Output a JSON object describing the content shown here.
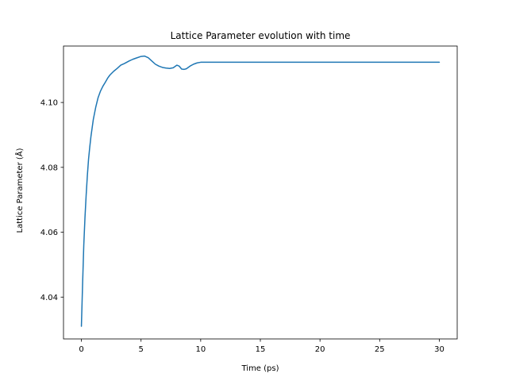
{
  "chart_data": {
    "type": "line",
    "title": "Lattice Parameter evolution with time",
    "xlabel": "Time (ps)",
    "ylabel": "Lattice Parameter (Å)",
    "xlim": [
      -1.5,
      31.5
    ],
    "ylim": [
      4.0271,
      4.1174
    ],
    "xticks": [
      0,
      5,
      10,
      15,
      20,
      25,
      30
    ],
    "xtick_labels": [
      "0",
      "5",
      "10",
      "15",
      "20",
      "25",
      "30"
    ],
    "yticks": [
      4.04,
      4.06,
      4.08,
      4.1
    ],
    "ytick_labels": [
      "4.04",
      "4.06",
      "4.08",
      "4.10"
    ],
    "grid": false,
    "legend": "none",
    "series": [
      {
        "color": "#1f77b4",
        "x": [
          0,
          0.1,
          0.2,
          0.3,
          0.4,
          0.5,
          0.6,
          0.7,
          0.8,
          1.0,
          1.2,
          1.4,
          1.6,
          1.8,
          2.0,
          2.2,
          2.4,
          2.7,
          3.0,
          3.3,
          3.6,
          4.0,
          4.3,
          4.6,
          5.0,
          5.3,
          5.6,
          5.9,
          6.2,
          6.5,
          6.8,
          7.1,
          7.4,
          7.7,
          8.0,
          8.2,
          8.4,
          8.6,
          8.8,
          9.1,
          9.4,
          9.7,
          10.0,
          15,
          20,
          25,
          30
        ],
        "y": [
          4.031,
          4.044,
          4.056,
          4.0645,
          4.0715,
          4.0775,
          4.0825,
          4.0862,
          4.0895,
          4.0948,
          4.0985,
          4.1015,
          4.1035,
          4.105,
          4.1062,
          4.1075,
          4.1085,
          4.1096,
          4.1105,
          4.1115,
          4.112,
          4.1128,
          4.1133,
          4.1137,
          4.1142,
          4.1143,
          4.1138,
          4.1128,
          4.1118,
          4.1112,
          4.1108,
          4.1106,
          4.1105,
          4.1107,
          4.1115,
          4.1112,
          4.1103,
          4.1102,
          4.1104,
          4.1112,
          4.1118,
          4.1122,
          4.1124,
          4.1124,
          4.1124,
          4.1124,
          4.1124
        ]
      }
    ]
  }
}
